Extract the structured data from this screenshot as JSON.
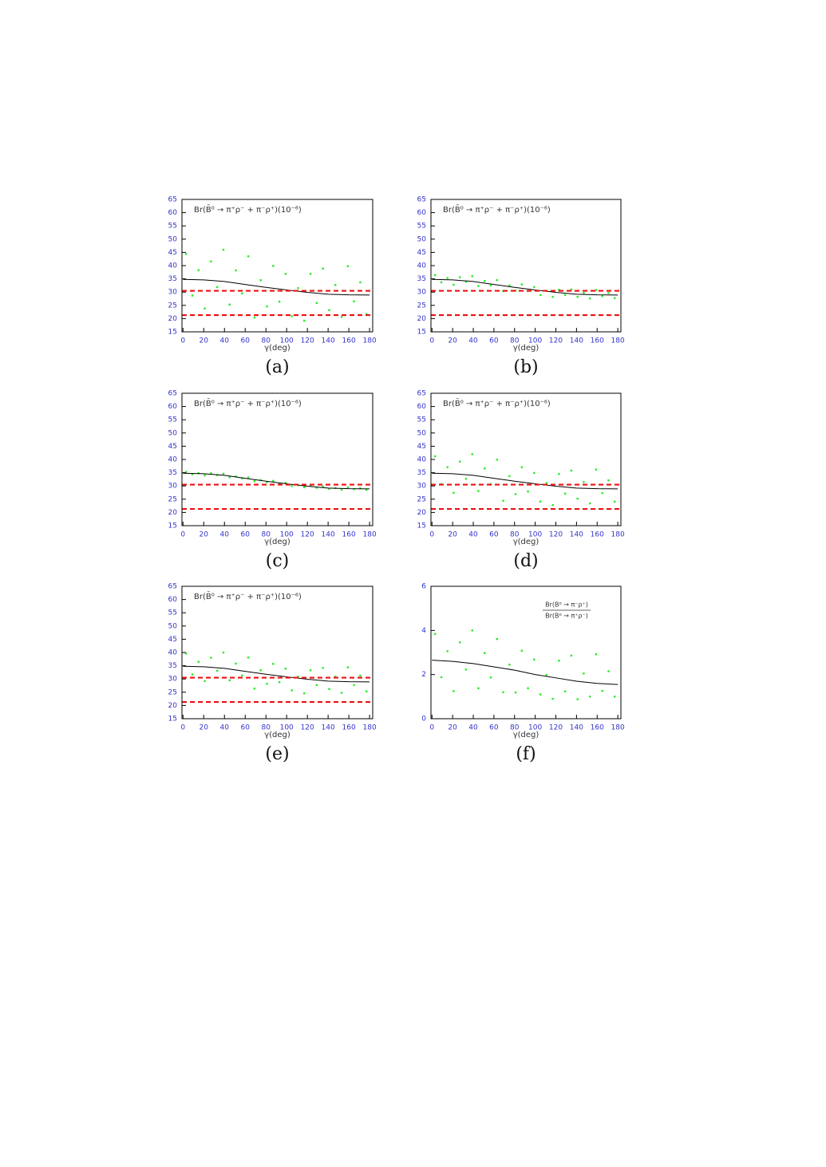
{
  "chart_data": [
    {
      "type": "scatter",
      "title": "Br(B̄⁰ → π⁺ρ⁻ + π⁻ρ⁺)(10⁻⁶)",
      "xlabel": "γ(deg)",
      "caption": "(a)",
      "xlim": [
        -1,
        183
      ],
      "ylim": [
        15,
        65
      ],
      "xticks": [
        0,
        20,
        40,
        60,
        80,
        100,
        120,
        140,
        160,
        180
      ],
      "yticks": [
        15,
        20,
        25,
        30,
        35,
        40,
        45,
        50,
        55,
        60,
        65
      ],
      "series": [
        {
          "marker": "dot",
          "color": "#22ee22",
          "x": [
            3,
            9,
            15,
            21,
            27,
            33,
            39,
            45,
            51,
            57,
            63,
            69,
            75,
            81,
            87,
            93,
            99,
            105,
            111,
            117,
            123,
            129,
            135,
            141,
            147,
            153,
            159,
            165,
            171,
            177
          ],
          "values": [
            44.4,
            28.7,
            38.3,
            23.8,
            41.6,
            31.9,
            46.0,
            25.3,
            38.2,
            29.5,
            43.5,
            20.4,
            34.5,
            24.6,
            39.9,
            26.4,
            36.9,
            20.9,
            31.5,
            19.2,
            36.9,
            25.9,
            38.9,
            23.2,
            32.7,
            20.6,
            39.8,
            26.5,
            33.7,
            21.7
          ]
        },
        {
          "marker": "line",
          "color": "#000000",
          "x": [
            0,
            20,
            40,
            60,
            80,
            100,
            120,
            140,
            160,
            180
          ],
          "values": [
            34.8,
            34.6,
            34.0,
            32.9,
            31.8,
            30.8,
            29.9,
            29.2,
            28.95,
            28.9
          ]
        }
      ],
      "hlines": {
        "values": [
          30.5,
          21.3
        ],
        "color": "#ee1111"
      }
    },
    {
      "type": "scatter",
      "title": "Br(B̄⁰ → π⁺ρ⁻ + π⁻ρ⁺)(10⁻⁶)",
      "xlabel": "γ(deg)",
      "caption": "(b)",
      "xlim": [
        -1,
        183
      ],
      "ylim": [
        15,
        65
      ],
      "xticks": [
        0,
        20,
        40,
        60,
        80,
        100,
        120,
        140,
        160,
        180
      ],
      "yticks": [
        15,
        20,
        25,
        30,
        35,
        40,
        45,
        50,
        55,
        60,
        65
      ],
      "series": [
        {
          "marker": "dot",
          "color": "#22ee22",
          "x": [
            3,
            9,
            15,
            21,
            27,
            33,
            39,
            45,
            51,
            57,
            63,
            69,
            75,
            81,
            87,
            93,
            99,
            105,
            111,
            117,
            123,
            129,
            135,
            141,
            147,
            153,
            159,
            165,
            171,
            177
          ],
          "values": [
            36.4,
            33.7,
            35.3,
            32.8,
            35.6,
            33.9,
            36.0,
            32.3,
            34.2,
            32.5,
            34.5,
            30.4,
            32.5,
            30.6,
            32.9,
            30.4,
            31.9,
            28.9,
            30.5,
            28.2,
            30.9,
            28.9,
            31.0,
            28.2,
            29.7,
            27.6,
            30.8,
            28.5,
            29.7,
            27.7
          ]
        },
        {
          "marker": "line",
          "color": "#000000",
          "x": [
            0,
            20,
            40,
            60,
            80,
            100,
            120,
            140,
            160,
            180
          ],
          "values": [
            34.8,
            34.6,
            34.0,
            32.9,
            31.8,
            30.8,
            29.9,
            29.2,
            28.95,
            28.9
          ]
        }
      ],
      "hlines": {
        "values": [
          30.5,
          21.3
        ],
        "color": "#ee1111"
      }
    },
    {
      "type": "scatter",
      "title": "Br(B̄⁰ → π⁺ρ⁻ + π⁻ρ⁺)(10⁻⁶)",
      "xlabel": "γ(deg)",
      "caption": "(c)",
      "xlim": [
        -1,
        183
      ],
      "ylim": [
        15,
        65
      ],
      "xticks": [
        0,
        20,
        40,
        60,
        80,
        100,
        120,
        140,
        160,
        180
      ],
      "yticks": [
        15,
        20,
        25,
        30,
        35,
        40,
        45,
        50,
        55,
        60,
        65
      ],
      "series": [
        {
          "marker": "dot",
          "color": "#22ee22",
          "x": [
            3,
            9,
            15,
            21,
            27,
            33,
            39,
            45,
            51,
            57,
            63,
            69,
            75,
            81,
            87,
            93,
            99,
            105,
            111,
            117,
            123,
            129,
            135,
            141,
            147,
            153,
            159,
            165,
            171,
            177
          ],
          "values": [
            35.3,
            34.4,
            34.8,
            34.0,
            34.8,
            34.1,
            34.6,
            33.3,
            33.6,
            32.9,
            33.2,
            31.8,
            32.2,
            31.4,
            31.9,
            30.9,
            31.2,
            30.0,
            30.3,
            29.5,
            30.1,
            29.3,
            29.8,
            28.9,
            29.2,
            28.6,
            29.5,
            28.8,
            29.1,
            28.5
          ]
        },
        {
          "marker": "line",
          "color": "#000000",
          "x": [
            0,
            20,
            40,
            60,
            80,
            100,
            120,
            140,
            160,
            180
          ],
          "values": [
            34.8,
            34.6,
            34.0,
            32.9,
            31.8,
            30.8,
            29.9,
            29.2,
            28.95,
            28.9
          ]
        }
      ],
      "hlines": {
        "values": [
          30.5,
          21.3
        ],
        "color": "#ee1111"
      }
    },
    {
      "type": "scatter",
      "title": "Br(B̄⁰ → π⁺ρ⁻ + π⁻ρ⁺)(10⁻⁶)",
      "xlabel": "γ(deg)",
      "caption": "(d)",
      "xlim": [
        -1,
        183
      ],
      "ylim": [
        15,
        65
      ],
      "xticks": [
        0,
        20,
        40,
        60,
        80,
        100,
        120,
        140,
        160,
        180
      ],
      "yticks": [
        15,
        20,
        25,
        30,
        35,
        40,
        45,
        50,
        55,
        60,
        65
      ],
      "series": [
        {
          "marker": "dot",
          "color": "#22ee22",
          "x": [
            3,
            9,
            15,
            21,
            27,
            33,
            39,
            45,
            51,
            57,
            63,
            69,
            75,
            81,
            87,
            93,
            99,
            105,
            111,
            117,
            123,
            129,
            135,
            141,
            147,
            153,
            159,
            165,
            171,
            177
          ],
          "values": [
            41.2,
            30.7,
            37.1,
            27.4,
            39.2,
            32.7,
            42.0,
            28.1,
            36.6,
            30.7,
            39.9,
            24.4,
            33.7,
            26.9,
            37.1,
            27.9,
            34.9,
            24.1,
            31.1,
            22.8,
            34.5,
            27.1,
            35.8,
            25.2,
            31.5,
            23.4,
            36.2,
            27.3,
            32.1,
            24.1
          ]
        },
        {
          "marker": "line",
          "color": "#000000",
          "x": [
            0,
            20,
            40,
            60,
            80,
            100,
            120,
            140,
            160,
            180
          ],
          "values": [
            34.8,
            34.6,
            34.0,
            32.9,
            31.8,
            30.8,
            29.9,
            29.2,
            28.95,
            28.9
          ]
        }
      ],
      "hlines": {
        "values": [
          30.5,
          21.3
        ],
        "color": "#ee1111"
      }
    },
    {
      "type": "scatter",
      "title": "Br(B̄⁰ → π⁺ρ⁻ + π⁻ρ⁺)(10⁻⁶)",
      "xlabel": "γ(deg)",
      "caption": "(e)",
      "xlim": [
        -1,
        183
      ],
      "ylim": [
        15,
        65
      ],
      "xticks": [
        0,
        20,
        40,
        60,
        80,
        100,
        120,
        140,
        160,
        180
      ],
      "yticks": [
        15,
        20,
        25,
        30,
        35,
        40,
        45,
        50,
        55,
        60,
        65
      ],
      "series": [
        {
          "marker": "dot",
          "color": "#22ee22",
          "x": [
            3,
            9,
            15,
            21,
            27,
            33,
            39,
            45,
            51,
            57,
            63,
            69,
            75,
            81,
            87,
            93,
            99,
            105,
            111,
            117,
            123,
            129,
            135,
            141,
            147,
            153,
            159,
            165,
            171,
            177
          ],
          "values": [
            39.6,
            31.7,
            36.5,
            29.2,
            38.0,
            33.1,
            40.0,
            29.5,
            35.8,
            31.3,
            38.1,
            26.4,
            33.3,
            28.2,
            35.7,
            28.8,
            33.9,
            25.7,
            30.9,
            24.6,
            33.3,
            27.7,
            34.2,
            26.2,
            30.9,
            24.8,
            34.4,
            27.7,
            31.3,
            25.3
          ]
        },
        {
          "marker": "line",
          "color": "#000000",
          "x": [
            0,
            20,
            40,
            60,
            80,
            100,
            120,
            140,
            160,
            180
          ],
          "values": [
            34.8,
            34.6,
            34.0,
            32.9,
            31.8,
            30.8,
            29.9,
            29.2,
            28.95,
            28.9
          ]
        }
      ],
      "hlines": {
        "values": [
          30.5,
          21.3
        ],
        "color": "#ee1111"
      }
    },
    {
      "type": "scatter",
      "title": {
        "numerator": "Br(B⁰ → π⁻ρ⁺)",
        "denominator": "Br(B⁰ → π⁺ρ⁻)"
      },
      "xlabel": "γ(deg)",
      "caption": "(f)",
      "xlim": [
        -1,
        183
      ],
      "ylim": [
        0,
        6
      ],
      "xticks": [
        0,
        20,
        40,
        60,
        80,
        100,
        120,
        140,
        160,
        180
      ],
      "yticks": [
        0,
        2,
        4,
        6
      ],
      "series": [
        {
          "marker": "dot",
          "color": "#22ee22",
          "x": [
            3,
            9,
            15,
            21,
            27,
            33,
            39,
            45,
            51,
            57,
            63,
            69,
            75,
            81,
            87,
            93,
            99,
            105,
            111,
            117,
            123,
            129,
            135,
            141,
            147,
            153,
            159,
            165,
            171,
            177
          ],
          "values": [
            3.84,
            1.88,
            3.06,
            1.25,
            3.46,
            2.23,
            4.0,
            1.38,
            2.97,
            1.87,
            3.61,
            1.2,
            2.45,
            1.19,
            3.08,
            1.38,
            2.68,
            1.1,
            1.98,
            0.9,
            2.63,
            1.24,
            2.86,
            0.88,
            2.05,
            1.0,
            2.92,
            1.26,
            2.15,
            1.0
          ]
        },
        {
          "marker": "line",
          "color": "#000000",
          "x": [
            0,
            20,
            40,
            60,
            80,
            100,
            120,
            140,
            160,
            180
          ],
          "values": [
            2.65,
            2.6,
            2.5,
            2.35,
            2.2,
            2.0,
            1.85,
            1.7,
            1.6,
            1.55
          ]
        }
      ]
    }
  ]
}
